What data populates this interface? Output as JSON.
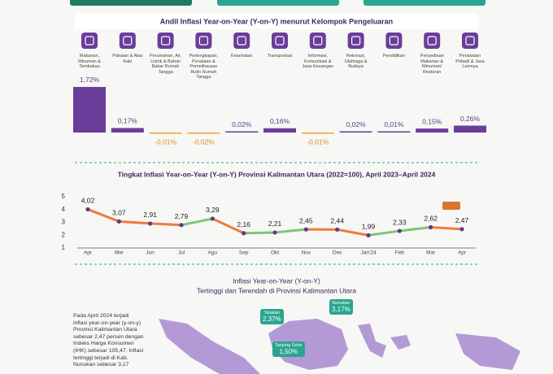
{
  "chart_data": [
    {
      "type": "bar",
      "title": "Andil Inflasi Year-on-Year (Y-on-Y) menurut Kelompok Pengeluaran",
      "categories": [
        "Makanan, Minuman & Tembakau",
        "Pakaian & Alas Kaki",
        "Perumahan, Air, Listrik & Bahan Bakar Rumah Tangga",
        "Perlengkapan, Peralatan & Pemeliharaan Rutin Rumah Tangga",
        "Kesehatan",
        "Transportasi",
        "Informasi, Komunikasi & Jasa Keuangan",
        "Rekreasi, Olahraga & Budaya",
        "Pendidikan",
        "Penyediaan Makanan & Minuman/ Restoran",
        "Perawatan Pribadi & Jasa Lainnya"
      ],
      "values": [
        1.72,
        0.17,
        -0.01,
        -0.02,
        0.02,
        0.16,
        -0.01,
        0.02,
        0.01,
        0.15,
        0.26
      ],
      "value_labels": [
        "1,72%",
        "0,17%",
        "-0,01%",
        "-0,02%",
        "0,02%",
        "0,16%",
        "-0,01%",
        "0,02%",
        "0,01%",
        "0,15%",
        "0,26%"
      ],
      "color": "#6a3d9a",
      "negative_color": "#f0a22e"
    },
    {
      "type": "line",
      "title": "Tingkat Inflasi Year-on-Year (Y-on-Y) Provinsi Kalimantan Utara (2022=100), April 2023–April 2024",
      "categories": [
        "Apr",
        "Mei",
        "Jun",
        "Jul",
        "Agu",
        "Sep",
        "Okt",
        "Nov",
        "Des",
        "Jan'24",
        "Feb",
        "Mar",
        "Apr"
      ],
      "values": [
        4.02,
        3.07,
        2.91,
        2.79,
        3.29,
        2.16,
        2.21,
        2.45,
        2.44,
        1.99,
        2.33,
        2.62,
        2.47
      ],
      "value_labels": [
        "4,02",
        "3,07",
        "2,91",
        "2,79",
        "3,29",
        "2,16",
        "2,21",
        "2,45",
        "2,44",
        "1,99",
        "2,33",
        "2,62",
        "2,47"
      ],
      "ylim": [
        1,
        5
      ],
      "yticks": [
        1,
        2,
        3,
        4,
        5
      ],
      "rise_color": "#7cc576",
      "fall_color": "#f07a3a",
      "marker_color": "#5b3a8c"
    }
  ],
  "map_section": {
    "title": "Inflasi Year-on-Year (Y-on-Y)",
    "subtitle": "Tertinggi dan Terendah di Provinsi Kalimantan Utara",
    "paragraph": [
      "Pada April 2024 terjadi",
      "inflasi year-on-year (y-on-y)",
      "Provinsi Kalimantan Utara",
      "sebesar 2,47 persen dengan",
      "Indeks Harga Konsumen",
      "(IHK) sebesar 105,47. Inflasi",
      "tertinggi terjadi di Kab.",
      "Nunukan sebesar 3,17"
    ],
    "callouts": [
      {
        "name": "Tarakan",
        "value": "2,37%"
      },
      {
        "name": "Nunukan",
        "value": "3,17%"
      },
      {
        "name": "Tanjung Selor",
        "value": "1,50%"
      }
    ]
  }
}
